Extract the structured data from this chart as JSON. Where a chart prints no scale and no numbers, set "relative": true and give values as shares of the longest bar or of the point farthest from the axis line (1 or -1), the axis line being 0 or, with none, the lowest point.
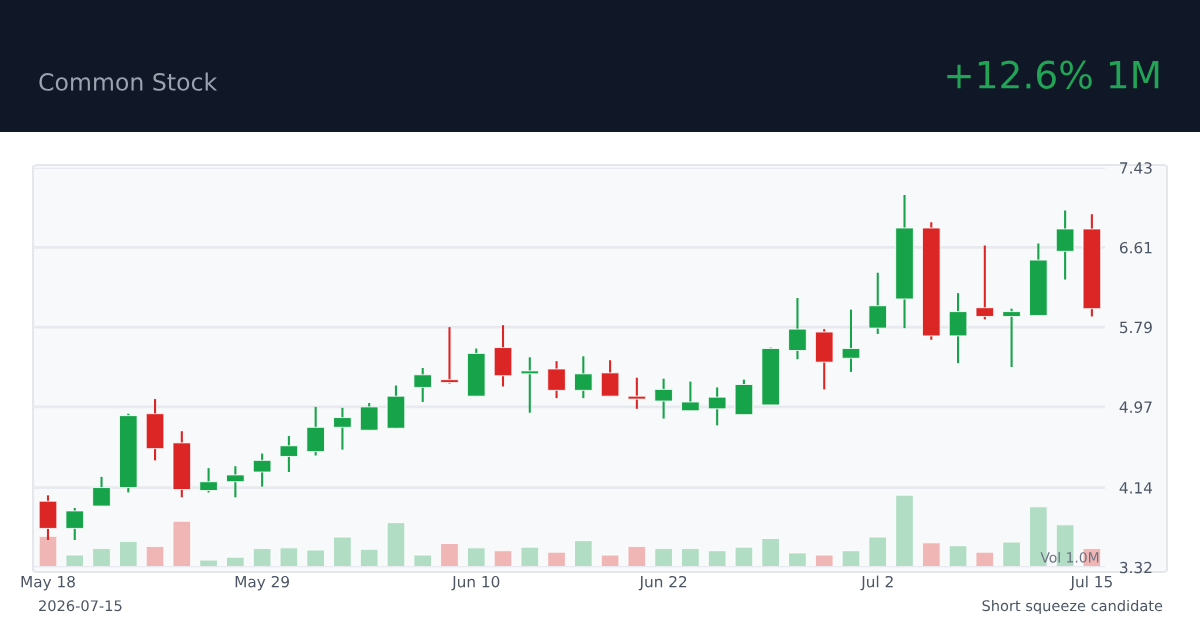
{
  "chart_data": [
    {
      "type": "candlestick",
      "title": "Common Stock",
      "subtitle": "+12.6% 1M",
      "categories": [
        "May 18",
        null,
        null,
        null,
        null,
        null,
        null,
        null,
        "May 29",
        null,
        null,
        null,
        null,
        null,
        null,
        null,
        "Jun 10",
        null,
        null,
        null,
        null,
        null,
        null,
        "Jun 22",
        null,
        null,
        null,
        null,
        null,
        null,
        null,
        "Jul 2",
        null,
        null,
        null,
        null,
        null,
        null,
        null,
        "Jul 15"
      ],
      "ohlc": [
        [
          4.0,
          4.06,
          3.6,
          3.72
        ],
        [
          3.72,
          3.93,
          3.6,
          3.9
        ],
        [
          3.95,
          4.25,
          3.95,
          4.14
        ],
        [
          4.14,
          4.9,
          4.09,
          4.88
        ],
        [
          4.9,
          5.05,
          4.42,
          4.54
        ],
        [
          4.6,
          4.72,
          4.04,
          4.12
        ],
        [
          4.11,
          4.34,
          4.09,
          4.2
        ],
        [
          4.2,
          4.36,
          4.04,
          4.27
        ],
        [
          4.3,
          4.49,
          4.15,
          4.42
        ],
        [
          4.46,
          4.67,
          4.3,
          4.57
        ],
        [
          4.51,
          4.97,
          4.47,
          4.76
        ],
        [
          4.76,
          4.96,
          4.53,
          4.86
        ],
        [
          4.73,
          5.01,
          4.73,
          4.97
        ],
        [
          4.75,
          5.19,
          4.75,
          5.08
        ],
        [
          5.17,
          5.37,
          5.02,
          5.3
        ],
        [
          5.25,
          5.79,
          5.21,
          5.22
        ],
        [
          5.08,
          5.57,
          5.08,
          5.52
        ],
        [
          5.58,
          5.81,
          5.18,
          5.29
        ],
        [
          5.31,
          5.48,
          4.91,
          5.34
        ],
        [
          5.36,
          5.44,
          5.06,
          5.14
        ],
        [
          5.14,
          5.49,
          5.06,
          5.31
        ],
        [
          5.32,
          5.45,
          5.08,
          5.08
        ],
        [
          5.08,
          5.27,
          4.95,
          5.05
        ],
        [
          5.03,
          5.26,
          4.85,
          5.15
        ],
        [
          4.93,
          5.23,
          4.93,
          5.02
        ],
        [
          4.95,
          5.17,
          4.78,
          5.07
        ],
        [
          4.89,
          5.25,
          4.89,
          5.2
        ],
        [
          4.99,
          5.58,
          4.99,
          5.57
        ],
        [
          5.55,
          6.09,
          5.46,
          5.77
        ],
        [
          5.74,
          5.77,
          5.15,
          5.43
        ],
        [
          5.47,
          5.97,
          5.33,
          5.57
        ],
        [
          5.78,
          6.35,
          5.72,
          6.01
        ],
        [
          6.08,
          7.15,
          5.78,
          6.81
        ],
        [
          6.81,
          6.87,
          5.66,
          5.7
        ],
        [
          5.7,
          6.14,
          5.42,
          5.95
        ],
        [
          5.99,
          6.63,
          5.87,
          5.9
        ],
        [
          5.9,
          5.98,
          5.38,
          5.95
        ],
        [
          5.91,
          6.65,
          5.91,
          6.48
        ],
        [
          6.57,
          6.99,
          6.28,
          6.8
        ],
        [
          6.8,
          6.95,
          5.9,
          5.98
        ]
      ],
      "colors": [
        "#dc2626",
        "#16a34a",
        "#16a34a",
        "#16a34a",
        "#dc2626",
        "#dc2626",
        "#16a34a",
        "#16a34a",
        "#16a34a",
        "#16a34a",
        "#16a34a",
        "#16a34a",
        "#16a34a",
        "#16a34a",
        "#16a34a",
        "#dc2626",
        "#16a34a",
        "#dc2626",
        "#16a34a",
        "#dc2626",
        "#16a34a",
        "#dc2626",
        "#dc2626",
        "#16a34a",
        "#16a34a",
        "#16a34a",
        "#16a34a",
        "#16a34a",
        "#16a34a",
        "#dc2626",
        "#16a34a",
        "#16a34a",
        "#16a34a",
        "#dc2626",
        "#16a34a",
        "#dc2626",
        "#16a34a",
        "#16a34a",
        "#16a34a",
        "#dc2626"
      ],
      "ylim": [
        3.32,
        7.43
      ],
      "yticks": [
        3.32,
        4.14,
        4.97,
        5.79,
        6.61,
        7.43
      ],
      "grid": "y",
      "annotations": [
        "2026-07-15",
        "Short squeeze candidate"
      ]
    },
    {
      "type": "bar",
      "relative": true,
      "categories": [
        null,
        null,
        null,
        null,
        null,
        null,
        null,
        null,
        null,
        null,
        null,
        null,
        null,
        null,
        null,
        null,
        null,
        null,
        null,
        null,
        null,
        null,
        null,
        null,
        null,
        null,
        null,
        null,
        null,
        null,
        null,
        null,
        null,
        null,
        null,
        null,
        null,
        null,
        null,
        null
      ],
      "values": [
        0.43,
        0.17,
        0.26,
        0.36,
        0.29,
        0.64,
        0.1,
        0.14,
        0.26,
        0.27,
        0.24,
        0.42,
        0.25,
        0.62,
        0.17,
        0.33,
        0.27,
        0.23,
        0.28,
        0.21,
        0.37,
        0.17,
        0.29,
        0.26,
        0.26,
        0.23,
        0.28,
        0.4,
        0.2,
        0.17,
        0.23,
        0.42,
        1,
        0.34,
        0.3,
        0.21,
        0.35,
        0.84,
        0.59,
        0.26
      ],
      "colors": [
        "#f0b6b6",
        "#b0ddc4",
        "#b0ddc4",
        "#b0ddc4",
        "#f0b6b6",
        "#f0b6b6",
        "#b0ddc4",
        "#b0ddc4",
        "#b0ddc4",
        "#b0ddc4",
        "#b0ddc4",
        "#b0ddc4",
        "#b0ddc4",
        "#b0ddc4",
        "#b0ddc4",
        "#f0b6b6",
        "#b0ddc4",
        "#f0b6b6",
        "#b0ddc4",
        "#f0b6b6",
        "#b0ddc4",
        "#f0b6b6",
        "#f0b6b6",
        "#b0ddc4",
        "#b0ddc4",
        "#b0ddc4",
        "#b0ddc4",
        "#b0ddc4",
        "#b0ddc4",
        "#f0b6b6",
        "#b0ddc4",
        "#b0ddc4",
        "#b0ddc4",
        "#f0b6b6",
        "#b0ddc4",
        "#f0b6b6",
        "#b0ddc4",
        "#b0ddc4",
        "#b0ddc4",
        "#f0b6b6"
      ],
      "annotations": [
        "Vol 1.0M"
      ]
    }
  ]
}
